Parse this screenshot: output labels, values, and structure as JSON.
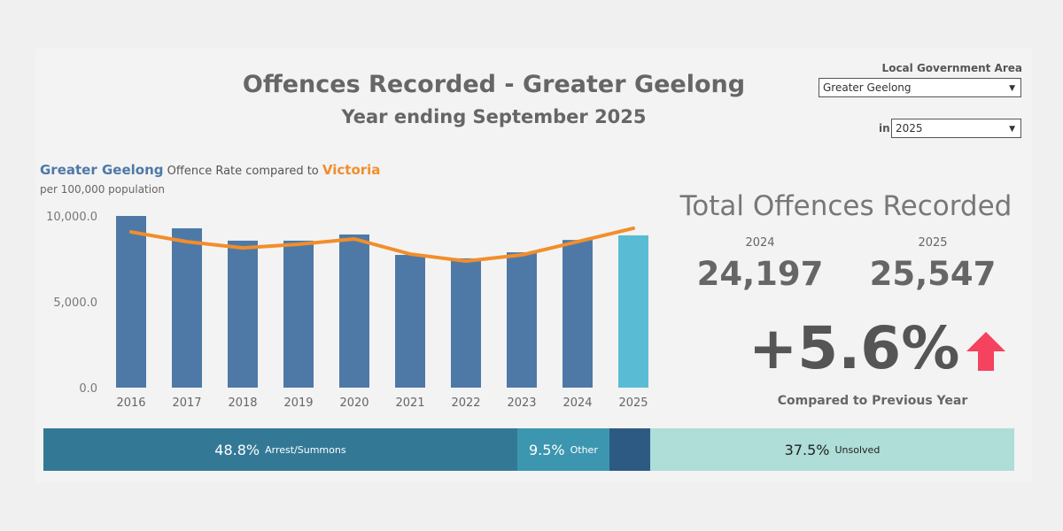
{
  "header": {
    "title": "Offences Recorded - Greater Geelong",
    "subtitle": "Year ending September 2025"
  },
  "filters": {
    "lga_label": "Local Government Area",
    "lga_value": "Greater Geelong",
    "year_prefix": "in",
    "year_value": "2025"
  },
  "chart_heading": {
    "area": "Greater Geelong",
    "middle": "Offence Rate compared to",
    "compare": "Victoria",
    "units": "per 100,000 population"
  },
  "chart_data": {
    "type": "bar",
    "title": "Greater Geelong Offence Rate compared to Victoria",
    "ylabel": "per 100,000 population",
    "categories": [
      "2016",
      "2017",
      "2018",
      "2019",
      "2020",
      "2021",
      "2022",
      "2023",
      "2024",
      "2025"
    ],
    "series": [
      {
        "name": "Greater Geelong",
        "type": "bar",
        "values": [
          10000,
          9280,
          8560,
          8560,
          8920,
          7730,
          7530,
          7880,
          8600,
          8870
        ]
      },
      {
        "name": "Victoria",
        "type": "line",
        "values": [
          9070,
          8500,
          8140,
          8350,
          8660,
          7780,
          7370,
          7730,
          8500,
          9280
        ]
      }
    ],
    "yticks": [
      "0.0",
      "5,000.0",
      "10,000.0"
    ],
    "ytick_values": [
      0,
      5000,
      10000
    ],
    "ylim": [
      0,
      10000
    ],
    "colors": {
      "bar": "#4e79a7",
      "bar_highlight": "#59bcd4",
      "line": "#f28e2b"
    }
  },
  "kpi": {
    "title": "Total Offences Recorded",
    "prev_year": "2024",
    "prev_value": "24,197",
    "curr_year": "2025",
    "curr_value": "25,547",
    "change": "+5.6%",
    "change_label": "Compared to Previous Year",
    "arrow_color": "#f4425f"
  },
  "outcomes": [
    {
      "pct": "48.8%",
      "label": "Arrest/Summons",
      "share": 48.8,
      "color": "#337996",
      "text": "#ffffff"
    },
    {
      "pct": "9.5%",
      "label": "Other",
      "share": 9.5,
      "color": "#3d96b0",
      "text": "#ffffff"
    },
    {
      "pct": "",
      "label": "",
      "share": 4.2,
      "color": "#2d5a83",
      "text": "#ffffff"
    },
    {
      "pct": "37.5%",
      "label": "Unsolved",
      "share": 37.5,
      "color": "#afddd7",
      "text": "#222222"
    }
  ]
}
